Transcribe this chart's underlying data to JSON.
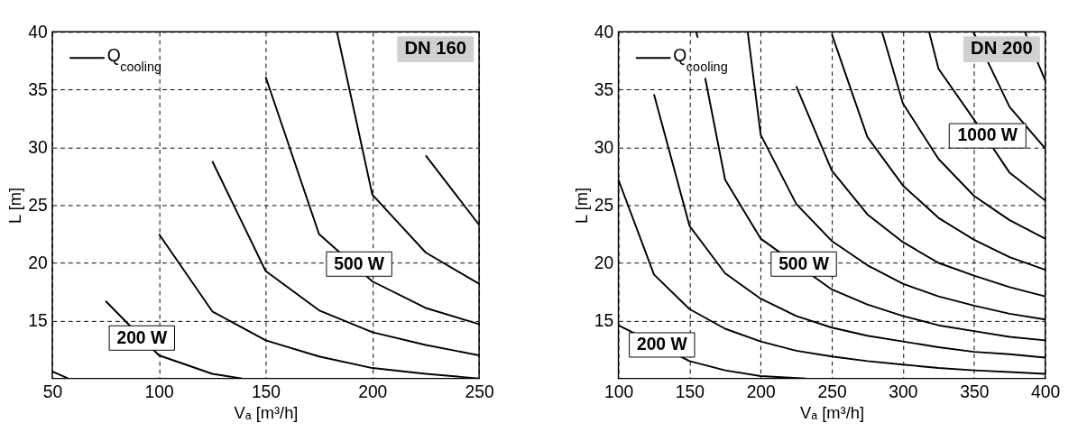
{
  "chart_data": [
    {
      "type": "line",
      "title": "DN 160",
      "xlabel": "Vₐ [m³/h]",
      "ylabel": "L [m]",
      "legend_title": "Q$_{cooling}$",
      "xlim": [
        50,
        250
      ],
      "xticks": [
        50,
        100,
        150,
        200,
        250
      ],
      "ylim": [
        10,
        40
      ],
      "yticks": [
        15,
        20,
        25,
        30,
        35,
        40
      ],
      "grid": true,
      "series": [
        {
          "color": "#000000",
          "x": [
            50,
            57.5
          ],
          "values": [
            10.6,
            10
          ]
        },
        {
          "color": "#000000",
          "x": [
            75,
            100,
            125,
            139
          ],
          "values": [
            16.7,
            12.0,
            10.4,
            10
          ]
        },
        {
          "color": "#000000",
          "x": [
            100,
            125,
            150,
            175,
            200,
            225,
            250
          ],
          "values": [
            22.5,
            15.8,
            13.3,
            11.9,
            10.9,
            10.4,
            10.0
          ]
        },
        {
          "color": "#000000",
          "x": [
            125,
            150,
            175,
            200,
            225,
            250
          ],
          "values": [
            28.8,
            19.3,
            15.9,
            14.0,
            12.9,
            12.0
          ]
        },
        {
          "color": "#000000",
          "x": [
            150,
            175,
            200,
            225,
            250
          ],
          "values": [
            36.1,
            22.5,
            18.4,
            16.1,
            14.7
          ]
        },
        {
          "color": "#000000",
          "x": [
            183.4,
            200,
            225,
            250
          ],
          "values": [
            40,
            25.9,
            20.9,
            18.2
          ]
        },
        {
          "color": "#000000",
          "x": [
            225,
            250
          ],
          "values": [
            29.3,
            23.3
          ]
        }
      ],
      "annotations": [
        {
          "text": "200 W",
          "x": 92,
          "y": 13.5
        },
        {
          "text": "500 W",
          "x": 193.8,
          "y": 19.9
        }
      ]
    },
    {
      "type": "line",
      "title": "DN 200",
      "xlabel": "Vₐ [m³/h]",
      "ylabel": "L [m]",
      "legend_title": "Q$_{cooling}$",
      "xlim": [
        100,
        400
      ],
      "xticks": [
        100,
        150,
        200,
        250,
        300,
        350,
        400
      ],
      "ylim": [
        10,
        40
      ],
      "yticks": [
        15,
        20,
        25,
        30,
        35,
        40
      ],
      "grid": true,
      "series": [
        {
          "color": "#000000",
          "x": [
            100,
            150,
            175,
            200,
            231.9
          ],
          "values": [
            14.6,
            11.5,
            10.7,
            10.2,
            10
          ]
        },
        {
          "color": "#000000",
          "x": [
            100,
            125,
            150,
            175,
            200,
            225,
            250,
            275,
            300,
            325,
            350,
            375,
            400
          ],
          "values": [
            27.2,
            19.0,
            16.0,
            14.3,
            13.2,
            12.4,
            11.9,
            11.5,
            11.2,
            10.9,
            10.7,
            10.55,
            10.4
          ]
        },
        {
          "color": "#000000",
          "x": [
            125,
            150,
            175,
            200,
            225,
            250,
            275,
            300,
            325,
            350,
            375,
            400
          ],
          "values": [
            34.6,
            23.2,
            19.1,
            16.9,
            15.4,
            14.4,
            13.7,
            13.2,
            12.7,
            12.3,
            12.1,
            11.8
          ]
        },
        {
          "color": "#000000",
          "x": [
            161,
            175,
            200,
            250,
            275,
            300,
            325,
            350,
            375,
            400
          ],
          "values": [
            36.0,
            27.2,
            22.1,
            17.7,
            16.4,
            15.4,
            14.6,
            14.1,
            13.6,
            13.3
          ]
        },
        {
          "color": "#000000",
          "x": [
            190.9,
            200,
            225,
            250,
            275,
            300,
            325,
            350,
            375,
            400
          ],
          "values": [
            40,
            31.1,
            25.1,
            21.9,
            19.8,
            18.2,
            17.1,
            16.3,
            15.6,
            15.1
          ]
        },
        {
          "color": "#000000",
          "x": [
            225,
            250,
            275,
            300,
            325,
            350,
            375,
            400
          ],
          "values": [
            35.3,
            28.0,
            24.2,
            21.8,
            20.0,
            18.9,
            17.9,
            17.1
          ]
        },
        {
          "color": "#000000",
          "x": [
            250,
            275,
            300,
            325,
            350,
            375,
            400
          ],
          "values": [
            39.8,
            30.9,
            26.7,
            23.9,
            22.0,
            20.5,
            19.4
          ]
        },
        {
          "color": "#000000",
          "x": [
            285.3,
            300,
            325,
            350,
            375,
            400
          ],
          "values": [
            40,
            33.8,
            29.0,
            25.8,
            23.7,
            22.1
          ]
        },
        {
          "color": "#000000",
          "x": [
            318.4,
            325,
            350,
            375,
            400
          ],
          "values": [
            40,
            36.8,
            32.4,
            27.8,
            25.4
          ]
        },
        {
          "color": "#000000",
          "x": [
            349.5,
            375,
            400
          ],
          "values": [
            40,
            33.5,
            29.9
          ]
        },
        {
          "color": "#000000",
          "x": [
            385.7,
            400
          ],
          "values": [
            40,
            35.8
          ]
        },
        {
          "color": "#000000",
          "x": [
            154.5,
            155.8
          ],
          "values": [
            40,
            39.5
          ]
        }
      ],
      "annotations": [
        {
          "text": "200 W",
          "x": 130.6,
          "y": 12.9
        },
        {
          "text": "500 W",
          "x": 230.3,
          "y": 19.9
        },
        {
          "text": "1000 W",
          "x": 359.5,
          "y": 31.0
        }
      ]
    }
  ]
}
